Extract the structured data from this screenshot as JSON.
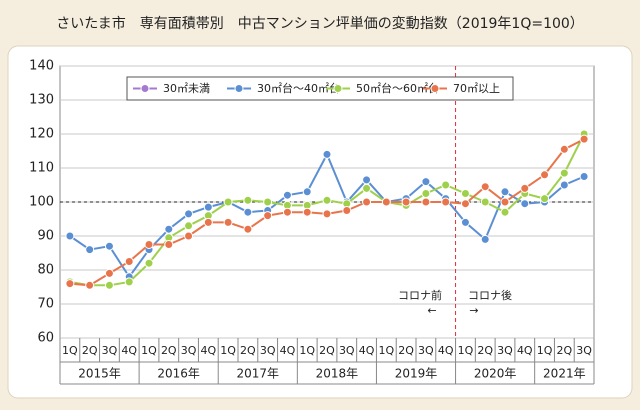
{
  "chart_data": {
    "type": "line",
    "title": "さいたま市　専有面積帯別　中古マンション坪単価の変動指数（2019年1Q=100）",
    "categories": [
      "1Q",
      "2Q",
      "3Q",
      "4Q",
      "1Q",
      "2Q",
      "3Q",
      "4Q",
      "1Q",
      "2Q",
      "3Q",
      "4Q",
      "1Q",
      "2Q",
      "3Q",
      "4Q",
      "1Q",
      "2Q",
      "3Q",
      "4Q",
      "1Q",
      "2Q",
      "3Q",
      "4Q",
      "1Q",
      "2Q",
      "3Q"
    ],
    "x_groups": [
      {
        "label": "2015年",
        "size": 4
      },
      {
        "label": "2016年",
        "size": 4
      },
      {
        "label": "2017年",
        "size": 4
      },
      {
        "label": "2018年",
        "size": 4
      },
      {
        "label": "2019年",
        "size": 4
      },
      {
        "label": "2020年",
        "size": 4
      },
      {
        "label": "2021年",
        "size": 3
      }
    ],
    "series": [
      {
        "name": "30㎡未満",
        "color": "#a47ad0",
        "values": [
          null,
          null,
          null,
          null,
          null,
          null,
          null,
          null,
          null,
          null,
          null,
          null,
          null,
          null,
          null,
          null,
          null,
          null,
          null,
          null,
          null,
          null,
          null,
          null,
          null,
          null,
          null
        ]
      },
      {
        "name": "30㎡台～40㎡台",
        "color": "#5b8fd3",
        "values": [
          90,
          86,
          87,
          78,
          86,
          92,
          96.5,
          98.5,
          100,
          97,
          97.5,
          102,
          103,
          114,
          100,
          106.5,
          100,
          101,
          106,
          101,
          94,
          89,
          103,
          99.5,
          100,
          105,
          107.5
        ]
      },
      {
        "name": "50㎡台～60㎡台",
        "color": "#9fd04c",
        "values": [
          76.5,
          75.5,
          75.5,
          76.5,
          82,
          89.5,
          93,
          96,
          100,
          100.5,
          100,
          99,
          99,
          100.5,
          99.5,
          104,
          100,
          99,
          102.5,
          105,
          102.5,
          100,
          97,
          102.5,
          101,
          108.5,
          120
        ]
      },
      {
        "name": "70㎡以上",
        "color": "#e8744c",
        "values": [
          76,
          75.5,
          79,
          82.5,
          87.5,
          87.5,
          90,
          94,
          94,
          92,
          96,
          97,
          97,
          96.5,
          97.5,
          100,
          100,
          100,
          100,
          100,
          99.5,
          104.5,
          100,
          104,
          108,
          115.5,
          118.5
        ]
      }
    ],
    "ylim": [
      60,
      140
    ],
    "yticks": [
      60,
      70,
      80,
      90,
      100,
      110,
      120,
      130,
      140
    ],
    "grid": true,
    "reference_y": 100,
    "annotations": [
      "コロナ前",
      "←",
      "コロナ後",
      "→"
    ]
  }
}
